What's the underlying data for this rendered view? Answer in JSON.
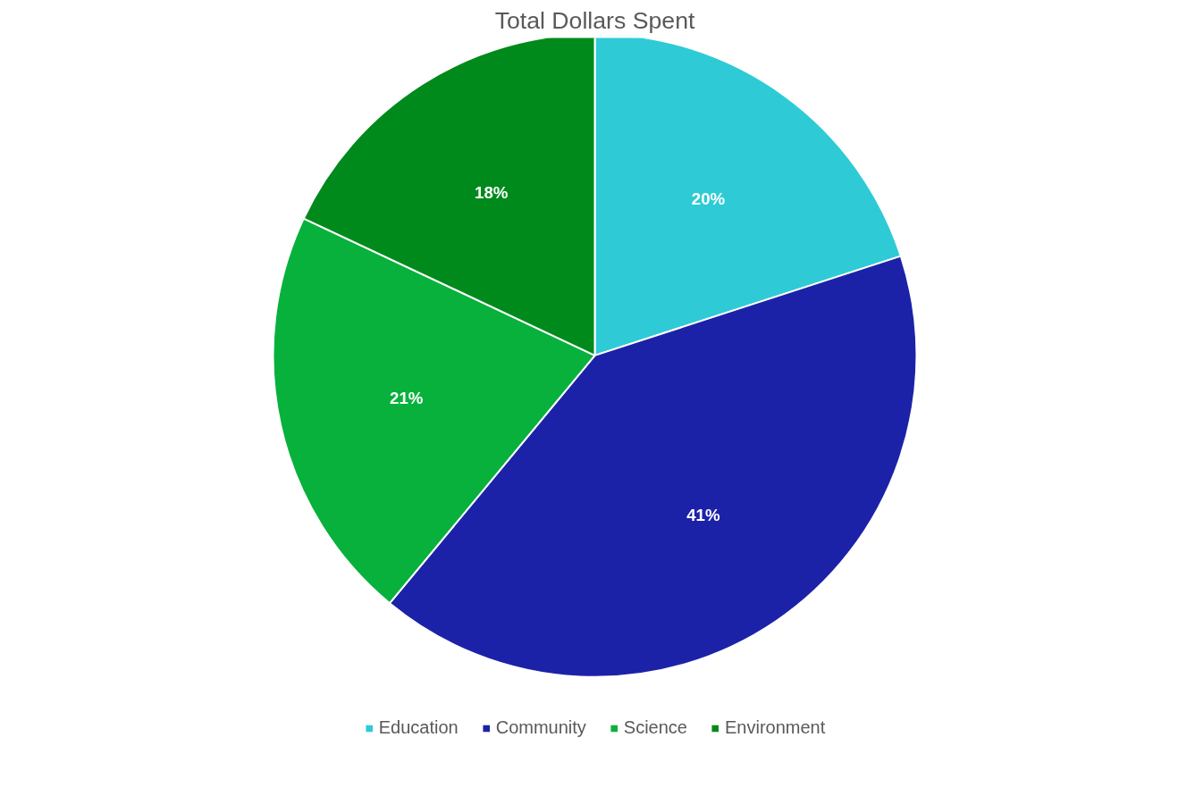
{
  "chart_data": {
    "type": "pie",
    "title": "Total Dollars Spent",
    "categories": [
      "Education",
      "Community",
      "Science",
      "Environment"
    ],
    "values": [
      20,
      41,
      21,
      18
    ],
    "value_labels": [
      "20%",
      "41%",
      "21%",
      "18%"
    ],
    "colors": [
      "#2ecbd6",
      "#1c22a8",
      "#08b13c",
      "#008a1c"
    ],
    "legend": "bottom"
  }
}
